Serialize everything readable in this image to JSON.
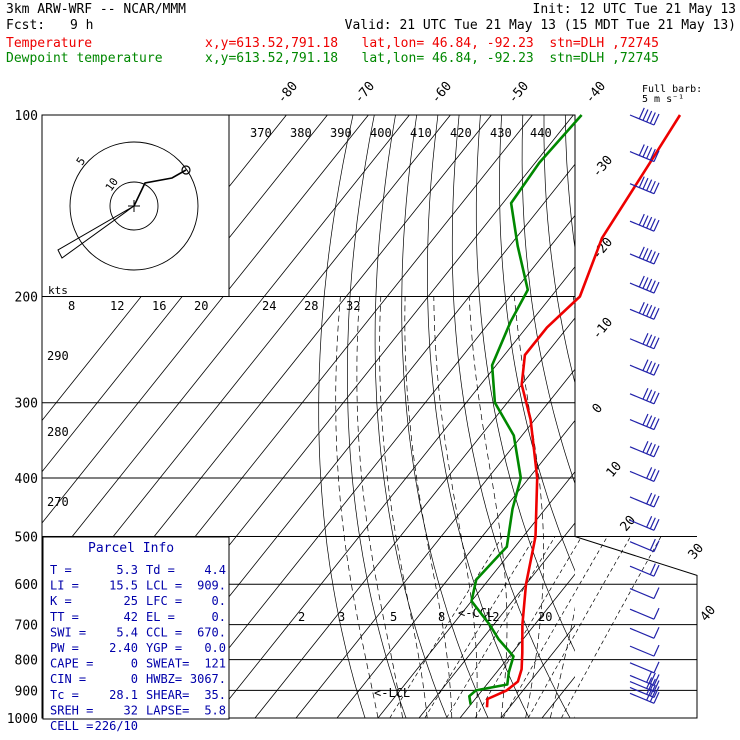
{
  "header": {
    "model": "3km ARW-WRF -- NCAR/MMM",
    "init": "Init: 12 UTC Tue 21 May 13",
    "fcst_label": "Fcst:",
    "fcst_value": "9 h",
    "valid": "Valid: 21 UTC Tue 21 May 13 (15 MDT Tue 21 May 13)",
    "temp_label": "Temperature",
    "dew_label": "Dewpoint temperature",
    "point_info": "x,y=613.52,791.18   lat,lon= 46.84, -92.23  stn=DLH ,72745",
    "wind_key": "Full barb:",
    "wind_key_value": "5 m s⁻¹",
    "colors": {
      "temperature": "#ee0000",
      "dewpoint": "#008800",
      "text": "#000000",
      "info": "#0000aa"
    }
  },
  "parcel": {
    "title": "Parcel Info",
    "rows": [
      [
        "T  =",
        "5.3",
        "Td =",
        "4.4"
      ],
      [
        "LI =",
        "15.5",
        "LCL =",
        "909."
      ],
      [
        "K  =",
        "25",
        "LFC =",
        "0."
      ],
      [
        "TT =",
        "42",
        "EL =",
        "0."
      ],
      [
        "SWI =",
        "5.4",
        "CCL =",
        "670."
      ],
      [
        "PW =",
        "2.40",
        "YGP =",
        "0.0"
      ],
      [
        "CAPE =",
        "0",
        "SWEAT=",
        "121"
      ],
      [
        "CIN =",
        "0",
        "HWBZ=",
        "3067."
      ],
      [
        "Tc =",
        "28.1",
        "SHEAR=",
        "35."
      ],
      [
        "SREH =",
        "32",
        "LAPSE=",
        "5.8"
      ],
      [
        "CELL =",
        "226/10",
        "",
        ""
      ]
    ]
  },
  "labels": {
    "lcl": "<-LCL",
    "ccl": "<-CCL",
    "hodo_units": "kts",
    "hodo_rings": [
      "5",
      "10"
    ],
    "hodo_scale": [
      "8",
      "12",
      "16",
      "20",
      "24",
      "28",
      "32"
    ],
    "theta_e": [
      "370",
      "380",
      "390",
      "400",
      "410",
      "420",
      "430",
      "440"
    ],
    "theta": [
      "290",
      "280",
      "270"
    ],
    "mixing_ratio": [
      "2",
      "3",
      "5",
      "8",
      "12",
      "20"
    ],
    "isotherm_top": [
      "-80",
      "-70",
      "-60",
      "-50",
      "-40"
    ],
    "isotherm_right": [
      "-30",
      "-20",
      "-10",
      "0",
      "10",
      "20",
      "30",
      "40"
    ]
  },
  "chart_data": {
    "type": "line",
    "title": "",
    "xlabel": "",
    "ylabel": "",
    "y_scale": "log-pressure",
    "ylim": [
      1000,
      100
    ],
    "pressure_ticks": [
      1000,
      900,
      800,
      700,
      600,
      500,
      400,
      300,
      200,
      100
    ],
    "pressure_labels": [
      "1000",
      "900",
      "800",
      "700",
      "600",
      "500",
      "400",
      "300",
      "200",
      "100"
    ],
    "x_note": "skewed isotherms, degrees C",
    "series": [
      {
        "name": "Temperature",
        "color": "#ee0000",
        "points": [
          {
            "p": 960,
            "t": 4.5
          },
          {
            "p": 930,
            "t": 3.0
          },
          {
            "p": 900,
            "t": 6.0
          },
          {
            "p": 870,
            "t": 7.0
          },
          {
            "p": 830,
            "t": 5.5
          },
          {
            "p": 780,
            "t": 2.5
          },
          {
            "p": 700,
            "t": -3.0
          },
          {
            "p": 600,
            "t": -10.0
          },
          {
            "p": 500,
            "t": -17.0
          },
          {
            "p": 400,
            "t": -28.0
          },
          {
            "p": 320,
            "t": -41.0
          },
          {
            "p": 280,
            "t": -50.0
          },
          {
            "p": 250,
            "t": -55.0
          },
          {
            "p": 225,
            "t": -55.0
          },
          {
            "p": 200,
            "t": -53.0
          },
          {
            "p": 160,
            "t": -59.0
          },
          {
            "p": 120,
            "t": -62.0
          },
          {
            "p": 100,
            "t": -64.0
          }
        ]
      },
      {
        "name": "Dewpoint temperature",
        "color": "#008800",
        "points": [
          {
            "p": 950,
            "t": 0.0
          },
          {
            "p": 920,
            "t": -2.0
          },
          {
            "p": 900,
            "t": -1.5
          },
          {
            "p": 880,
            "t": 5.0
          },
          {
            "p": 840,
            "t": 3.0
          },
          {
            "p": 790,
            "t": 1.0
          },
          {
            "p": 740,
            "t": -6.0
          },
          {
            "p": 700,
            "t": -11.0
          },
          {
            "p": 640,
            "t": -20.0
          },
          {
            "p": 590,
            "t": -23.0
          },
          {
            "p": 520,
            "t": -22.0
          },
          {
            "p": 450,
            "t": -28.0
          },
          {
            "p": 400,
            "t": -32.0
          },
          {
            "p": 340,
            "t": -42.0
          },
          {
            "p": 300,
            "t": -53.0
          },
          {
            "p": 260,
            "t": -61.0
          },
          {
            "p": 220,
            "t": -65.0
          },
          {
            "p": 195,
            "t": -67.0
          },
          {
            "p": 165,
            "t": -78.0
          },
          {
            "p": 140,
            "t": -88.0
          },
          {
            "p": 120,
            "t": -89.0
          },
          {
            "p": 100,
            "t": -88.0
          }
        ]
      }
    ],
    "wind": {
      "levels": [
        100,
        115,
        130,
        150,
        170,
        190,
        210,
        235,
        260,
        290,
        320,
        355,
        390,
        430,
        470,
        510,
        560,
        610,
        660,
        710,
        760,
        810,
        850,
        870,
        890,
        910
      ],
      "speeds_knots": [
        50,
        50,
        50,
        45,
        45,
        45,
        45,
        40,
        40,
        35,
        35,
        35,
        30,
        30,
        25,
        20,
        15,
        10,
        10,
        10,
        10,
        10,
        25,
        30,
        30,
        30
      ]
    }
  }
}
